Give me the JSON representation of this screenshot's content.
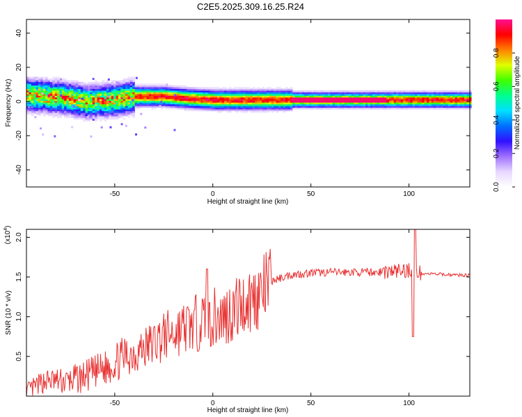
{
  "figure": {
    "title": "C2E5.2025.309.16.25.R24"
  },
  "colorbar": {
    "label": "Normalized spectral amplitude",
    "ticks": [
      "0.0",
      "0.2",
      "0.4",
      "0.6",
      "0.8"
    ],
    "tick_values": [
      0.0,
      0.2,
      0.4,
      0.6,
      0.8
    ],
    "range": [
      0,
      1
    ],
    "colormap": [
      "#ffffff",
      "#e8d8ff",
      "#a070ff",
      "#3010ff",
      "#0070ff",
      "#00e0ff",
      "#00ff90",
      "#40ff00",
      "#e0ff00",
      "#ff8000",
      "#ff0000",
      "#ff1090"
    ]
  },
  "chart_data": [
    {
      "type": "heatmap",
      "xlabel": "Height of straight line (km)",
      "ylabel": "Frequency (Hz)",
      "xlim": [
        -95,
        131
      ],
      "ylim": [
        -50,
        48
      ],
      "xticks": [
        -50,
        0,
        50,
        100
      ],
      "xtick_labels": [
        "-50",
        "0",
        "50",
        "100"
      ],
      "yticks": [
        -40,
        -20,
        0,
        20,
        40
      ],
      "ytick_labels": [
        "-40",
        "-20",
        "0",
        "20",
        "40"
      ],
      "ridge": {
        "description_points": [
          [
            -95,
            4
          ],
          [
            -85,
            3
          ],
          [
            -75,
            2
          ],
          [
            -65,
            0
          ],
          [
            -50,
            1
          ],
          [
            -40,
            3
          ],
          [
            -25,
            3
          ],
          [
            -15,
            2
          ],
          [
            0,
            1
          ],
          [
            20,
            1
          ],
          [
            40,
            1
          ],
          [
            60,
            1
          ],
          [
            80,
            1
          ],
          [
            100,
            1
          ],
          [
            131,
            1
          ]
        ],
        "peak_amplitude": 1.0
      }
    },
    {
      "type": "line",
      "xlabel": "Height of straight line (km)",
      "ylabel": "SNR (10 * v/v)",
      "multiplier_label": "(x10",
      "multiplier_exponent": "4",
      "multiplier_close": ")",
      "xlim": [
        -95,
        131
      ],
      "ylim": [
        0,
        2.1
      ],
      "xticks": [
        -50,
        0,
        50,
        100
      ],
      "xtick_labels": [
        "-50",
        "0",
        "50",
        "100"
      ],
      "yticks": [
        0.5,
        1.0,
        1.5,
        2.0
      ],
      "ytick_labels": [
        "0.5",
        "1.0",
        "1.5",
        "2.0"
      ],
      "color": "#e83030",
      "series": [
        {
          "x": [
            -95,
            -85,
            -75,
            -65,
            -55,
            -45,
            -35,
            -25,
            -15,
            -5,
            5,
            15,
            25,
            30,
            40,
            50,
            60,
            70,
            80,
            90,
            98,
            102,
            105,
            110,
            120,
            131
          ],
          "y": [
            0.05,
            0.2,
            0.18,
            0.25,
            0.35,
            0.5,
            0.6,
            0.75,
            0.85,
            0.95,
            1.0,
            1.15,
            1.3,
            1.45,
            1.53,
            1.55,
            1.56,
            1.56,
            1.56,
            1.57,
            1.58,
            1.6,
            1.55,
            1.54,
            1.53,
            1.52
          ]
        }
      ],
      "spikes": [
        {
          "x": -3,
          "y": 1.6
        },
        {
          "x": 103,
          "y": 2.1
        },
        {
          "x": 102,
          "y": 0.75
        }
      ]
    }
  ]
}
